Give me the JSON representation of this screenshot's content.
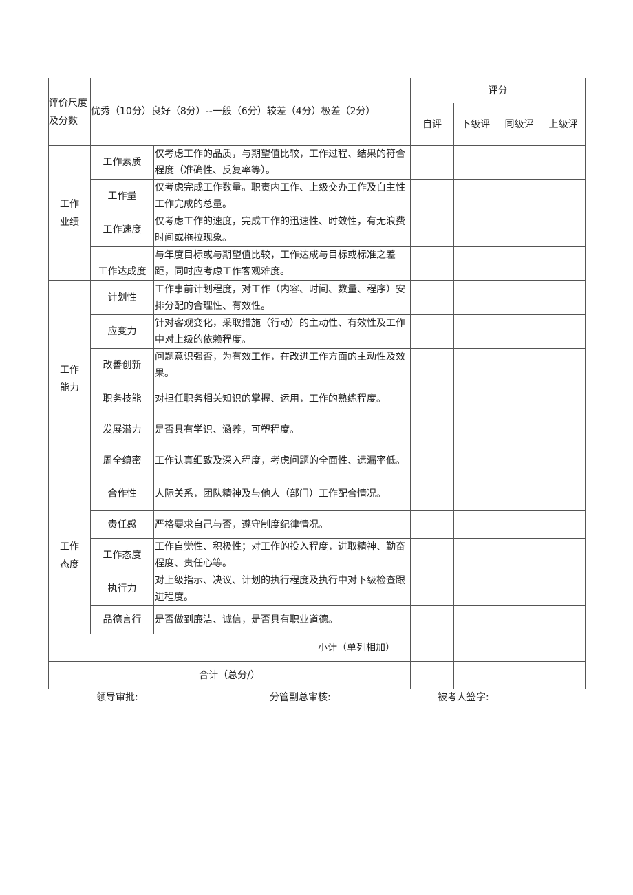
{
  "header": {
    "scale_label": "评价尺度及分数",
    "scale_text": "优秀（10分）良好（8分）--一般（6分）较差（4分）极差（2分）",
    "score_label": "评分",
    "score_columns": [
      "自评",
      "下级评",
      "同级评",
      "上级评"
    ]
  },
  "groups": [
    {
      "name": "工作业绩",
      "items": [
        {
          "name": "工作素质",
          "desc": "仅考虑工作的品质，与期望值比较，工作过程、结果的符合程度（准确性、反复率等）。"
        },
        {
          "name": "工作量",
          "desc": "仅考虑完成工作数量。职责内工作、上级交办工作及自主性工作完成的总量。"
        },
        {
          "name": "工作速度",
          "desc": "仅考虑工作的速度，完成工作的迅速性、时效性，有无浪费时间或拖拉现象。"
        },
        {
          "name": "工作达成度",
          "desc": "与年度目标或与期望值比较，工作达成与目标或标准之差距，同时应考虑工作客观难度。"
        }
      ]
    },
    {
      "name": "工作能力",
      "items": [
        {
          "name": "计划性",
          "desc": "工作事前计划程度，对工作（内容、时间、数量、程序）安排分配的合理性、有效性。"
        },
        {
          "name": "应变力",
          "desc": "针对客观变化，采取措施（行动）的主动性、有效性及工作中对上级的依赖程度。"
        },
        {
          "name": "改善创新",
          "desc": "问题意识强否，为有效工作，在改进工作方面的主动性及效果。"
        },
        {
          "name": "职务技能",
          "desc": "对担任职务相关知识的掌握、运用，工作的熟练程度。"
        },
        {
          "name": "发展潜力",
          "desc": "是否具有学识、涵养，可塑程度。"
        },
        {
          "name": "周全缜密",
          "desc": "工作认真细致及深入程度，考虑问题的全面性、遗漏率低。"
        }
      ]
    },
    {
      "name": "工作态度",
      "items": [
        {
          "name": "合作性",
          "desc": "人际关系，团队精神及与他人（部门）工作配合情况。"
        },
        {
          "name": "责任感",
          "desc": "严格要求自己与否，遵守制度纪律情况。"
        },
        {
          "name": "工作态度",
          "desc": "工作自觉性、积极性；对工作的投入程度，进取精神、勤奋程度、责任心等。"
        },
        {
          "name": "执行力",
          "desc": "对上级指示、决议、计划的执行程度及执行中对下级检查跟进程度。"
        },
        {
          "name": "品德言行",
          "desc": "是否做到廉洁、诚信，是否具有职业道德。"
        }
      ]
    }
  ],
  "footer": {
    "subtotal_label": "小计（单列相加）",
    "total_label": "合计（总分/）",
    "sign_leader": "领导审批:",
    "sign_vp": "分管副总审核:",
    "sign_employee": "被考人签字:"
  }
}
